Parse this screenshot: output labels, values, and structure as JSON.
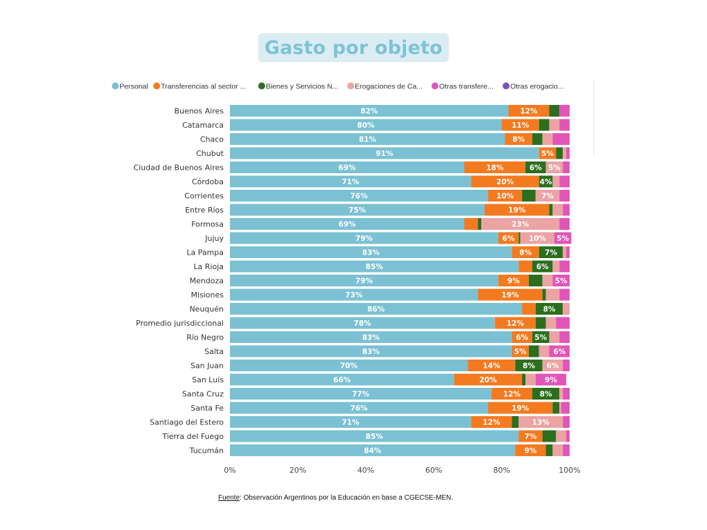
{
  "title": "Gasto por objeto",
  "source": {
    "label": "Fuente",
    "text": ": Observación Argentinos por la Educación en base a CGECSE-MEN."
  },
  "chart_data": {
    "type": "bar",
    "orientation": "horizontal",
    "stacked": "percent",
    "xlim": [
      0,
      100
    ],
    "x_ticks": [
      "0%",
      "20%",
      "40%",
      "60%",
      "80%",
      "100%"
    ],
    "legend": [
      {
        "name": "Personal",
        "color": "#7bc1d3"
      },
      {
        "name": "Transferencias al sector ...",
        "color": "#f47a20"
      },
      {
        "name": "Bienes y Servicios N...",
        "color": "#2b6f1e"
      },
      {
        "name": "Erogaciones de Ca...",
        "color": "#eba3a3"
      },
      {
        "name": "Otras transfere...",
        "color": "#e255b8"
      },
      {
        "name": "Otras erogacio...",
        "color": "#7b52b9"
      }
    ],
    "categories": [
      "Buenos Aires",
      "Catamarca",
      "Chaco",
      "Chubut",
      "Ciudad de Buenos Aires",
      "Córdoba",
      "Corrientes",
      "Entre Ríos",
      "Formosa",
      "Jujuy",
      "La Pampa",
      "La Rioja",
      "Mendoza",
      "Misiones",
      "Neuquén",
      "Promedio jurisdiccional",
      "Río Negro",
      "Salta",
      "San Juan",
      "San Luis",
      "Santa Cruz",
      "Santa Fe",
      "Santiago del Estero",
      "Tierra del Fuego",
      "Tucumán"
    ],
    "series": [
      {
        "name": "Personal",
        "values": [
          82,
          80,
          81,
          91,
          69,
          71,
          76,
          75,
          69,
          79,
          83,
          85,
          79,
          73,
          86,
          78,
          83,
          83,
          70,
          66,
          77,
          76,
          71,
          85,
          84
        ]
      },
      {
        "name": "Transferencias al sector privado",
        "values": [
          12,
          11,
          8,
          5,
          18,
          20,
          10,
          19,
          4,
          6,
          8,
          4,
          9,
          19,
          4,
          12,
          6,
          5,
          14,
          20,
          12,
          19,
          12,
          7,
          9
        ]
      },
      {
        "name": "Bienes y Servicios No Personales",
        "values": [
          3,
          3,
          3,
          2,
          6,
          4,
          4,
          1,
          1,
          0.5,
          7,
          6,
          4,
          1,
          8,
          3,
          5,
          3,
          8,
          1,
          8,
          2,
          2,
          4,
          2
        ]
      },
      {
        "name": "Erogaciones de Capital",
        "values": [
          0,
          3,
          3,
          1,
          5,
          2,
          7,
          3,
          23,
          10,
          1,
          2,
          3,
          4,
          2,
          3,
          3,
          3,
          6,
          3,
          1,
          0.5,
          13,
          3,
          3
        ]
      },
      {
        "name": "Otras transferencias",
        "values": [
          3,
          3,
          5,
          1,
          2,
          3,
          3,
          2,
          3,
          5,
          1,
          3,
          5,
          3,
          0,
          4,
          3,
          6,
          2,
          9,
          2,
          2.5,
          2,
          1,
          2
        ]
      },
      {
        "name": "Otras erogaciones",
        "values": [
          0,
          0,
          0,
          0,
          0,
          0,
          0,
          0,
          0,
          0,
          0,
          0,
          0,
          0,
          0,
          0,
          0,
          0,
          0,
          0,
          0,
          0,
          0,
          0,
          0
        ]
      }
    ],
    "labels": [
      [
        "82%",
        "12%",
        "",
        "",
        "",
        ""
      ],
      [
        "80%",
        "11%",
        "",
        "",
        "",
        ""
      ],
      [
        "81%",
        "8%",
        "",
        "",
        "",
        ""
      ],
      [
        "91%",
        "5%",
        "",
        "",
        "",
        ""
      ],
      [
        "69%",
        "18%",
        "6%",
        "5%",
        "",
        ""
      ],
      [
        "71%",
        "20%",
        "4%",
        "",
        "",
        ""
      ],
      [
        "76%",
        "10%",
        "",
        "7%",
        "",
        ""
      ],
      [
        "75%",
        "19%",
        "",
        "",
        "",
        ""
      ],
      [
        "69%",
        "",
        "",
        "23%",
        "",
        ""
      ],
      [
        "79%",
        "6%",
        "",
        "10%",
        "5%",
        ""
      ],
      [
        "83%",
        "8%",
        "7%",
        "",
        "",
        ""
      ],
      [
        "85%",
        "",
        "6%",
        "",
        "",
        ""
      ],
      [
        "79%",
        "9%",
        "",
        "",
        "5%",
        ""
      ],
      [
        "73%",
        "19%",
        "",
        "",
        "",
        ""
      ],
      [
        "86%",
        "",
        "8%",
        "",
        "",
        ""
      ],
      [
        "78%",
        "12%",
        "",
        "",
        "",
        ""
      ],
      [
        "83%",
        "6%",
        "5%",
        "",
        "",
        ""
      ],
      [
        "83%",
        "5%",
        "",
        "",
        "6%",
        ""
      ],
      [
        "70%",
        "14%",
        "8%",
        "6%",
        "",
        ""
      ],
      [
        "66%",
        "20%",
        "",
        "",
        "9%",
        ""
      ],
      [
        "77%",
        "12%",
        "8%",
        "",
        "",
        ""
      ],
      [
        "76%",
        "19%",
        "",
        "",
        "",
        ""
      ],
      [
        "71%",
        "12%",
        "",
        "13%",
        "",
        ""
      ],
      [
        "85%",
        "7%",
        "",
        "",
        "",
        ""
      ],
      [
        "84%",
        "9%",
        "",
        "",
        "",
        ""
      ]
    ]
  }
}
